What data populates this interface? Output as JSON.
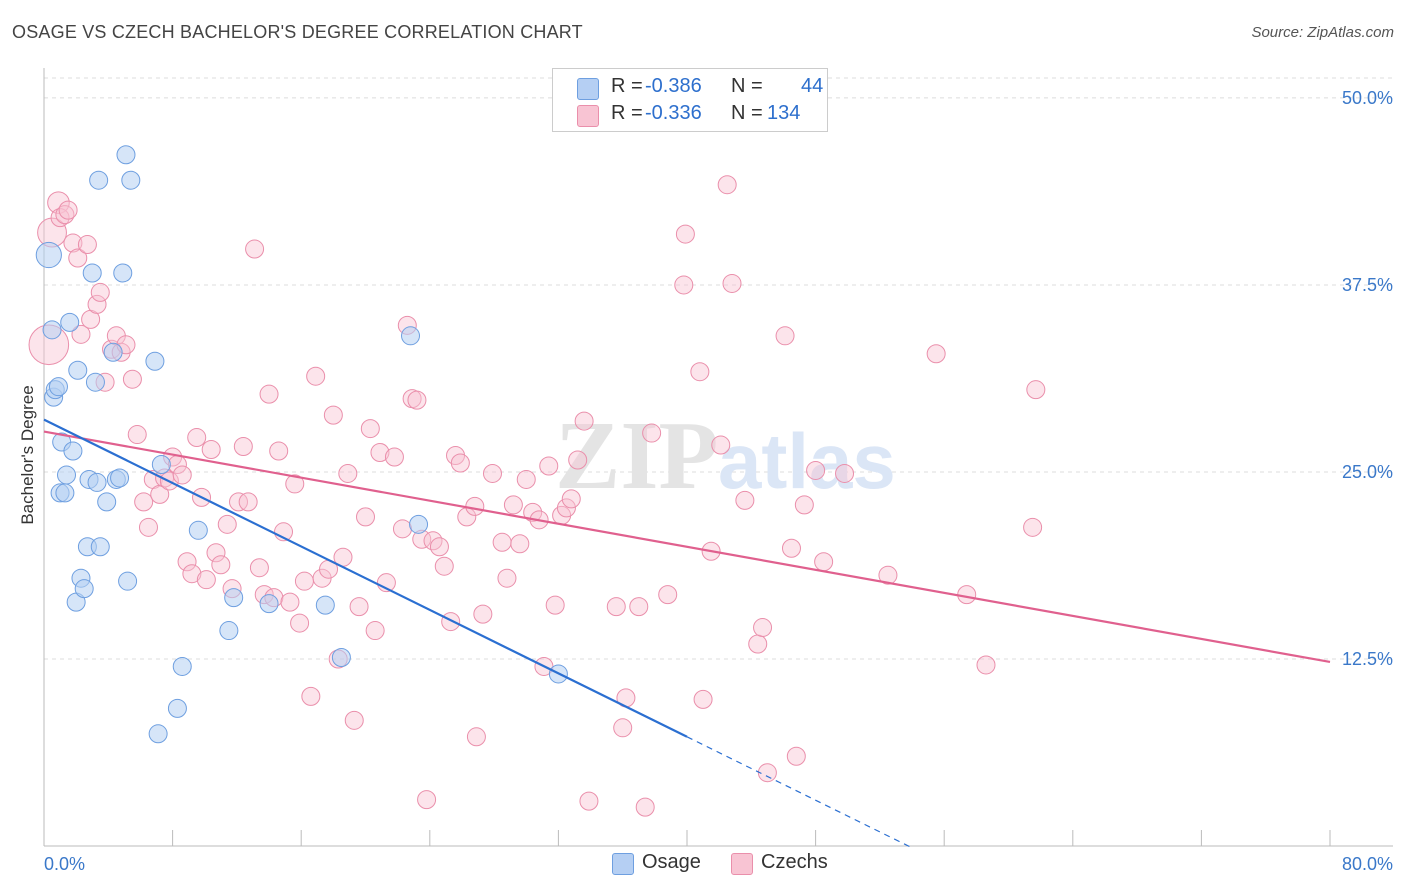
{
  "title": "OSAGE VS CZECH BACHELOR'S DEGREE CORRELATION CHART",
  "source": "Source: ZipAtlas.com",
  "watermark": {
    "zip": "ZIP",
    "atlas": "atlas"
  },
  "legend": {
    "rows": [
      {
        "r_label": "R =",
        "r_value": "-0.386",
        "n_label": "N =",
        "n_value": "44"
      },
      {
        "r_label": "R =",
        "r_value": "-0.336",
        "n_label": "N =",
        "n_value": "134"
      }
    ],
    "bottom": [
      "Osage",
      "Czechs"
    ]
  },
  "colors": {
    "osage_fill": "#b5cff3",
    "osage_stroke": "#6e9fe0",
    "osage_line": "#2b6fd1",
    "czech_fill": "#f8c4d3",
    "czech_stroke": "#ea8fab",
    "czech_line": "#e0608e",
    "grid": "#dcdcdc",
    "axis_text": "#3a78c9"
  },
  "chart_data": {
    "type": "scatter",
    "title": "OSAGE VS CZECH BACHELOR'S DEGREE CORRELATION CHART",
    "xlabel": "",
    "ylabel": "Bachelor's Degree",
    "xlim": [
      0,
      80
    ],
    "ylim": [
      0,
      52
    ],
    "x_tick_labels": [
      "0.0%",
      "80.0%"
    ],
    "y_ticks": [
      12.5,
      25.0,
      37.5,
      50.0
    ],
    "y_tick_labels": [
      "12.5%",
      "25.0%",
      "37.5%",
      "50.0%"
    ],
    "series": [
      {
        "name": "Osage",
        "r": -0.386,
        "n": 44,
        "trend": {
          "x0": 0,
          "y0": 28.5,
          "x1": 40,
          "y1": 7.3,
          "dash_to_x": 54
        },
        "points": [
          [
            0.3,
            39.5,
            1.4
          ],
          [
            0.5,
            34.5,
            1
          ],
          [
            0.6,
            30,
            1
          ],
          [
            0.7,
            30.5,
            1
          ],
          [
            0.9,
            30.7,
            1
          ],
          [
            1.0,
            23.6,
            1
          ],
          [
            1.1,
            27,
            1
          ],
          [
            1.3,
            23.6,
            1
          ],
          [
            1.4,
            24.8,
            1
          ],
          [
            1.6,
            35,
            1
          ],
          [
            1.8,
            26.4,
            1
          ],
          [
            2.0,
            16.3,
            1
          ],
          [
            2.1,
            31.8,
            1
          ],
          [
            2.3,
            17.9,
            1
          ],
          [
            2.5,
            17.2,
            1
          ],
          [
            2.7,
            20,
            1
          ],
          [
            2.8,
            24.5,
            1
          ],
          [
            3.0,
            38.3,
            1
          ],
          [
            3.2,
            31,
            1
          ],
          [
            3.3,
            24.3,
            1
          ],
          [
            3.4,
            44.5,
            1
          ],
          [
            3.5,
            20,
            1
          ],
          [
            3.9,
            23,
            1
          ],
          [
            4.3,
            33,
            1
          ],
          [
            4.5,
            24.5,
            1
          ],
          [
            4.7,
            24.6,
            1
          ],
          [
            4.9,
            38.3,
            1
          ],
          [
            5.1,
            46.2,
            1
          ],
          [
            5.2,
            17.7,
            1
          ],
          [
            5.4,
            44.5,
            1
          ],
          [
            6.9,
            32.4,
            1
          ],
          [
            7.1,
            7.5,
            1
          ],
          [
            7.3,
            25.5,
            1
          ],
          [
            8.3,
            9.2,
            1
          ],
          [
            8.6,
            12,
            1
          ],
          [
            9.6,
            21.1,
            1
          ],
          [
            11.5,
            14.4,
            1
          ],
          [
            11.8,
            16.6,
            1
          ],
          [
            14.0,
            16.2,
            1
          ],
          [
            17.5,
            16.1,
            1
          ],
          [
            18.5,
            12.6,
            1
          ],
          [
            22.8,
            34.1,
            1
          ],
          [
            23.3,
            21.5,
            1
          ],
          [
            32.0,
            11.5,
            1
          ]
        ]
      },
      {
        "name": "Czechs",
        "r": -0.336,
        "n": 134,
        "trend": {
          "x0": 0,
          "y0": 27.7,
          "x1": 80,
          "y1": 12.3
        },
        "points": [
          [
            0.3,
            33.5,
            2.2
          ],
          [
            0.5,
            41,
            1.6
          ],
          [
            0.9,
            43,
            1.2
          ],
          [
            1.0,
            42,
            1
          ],
          [
            1.3,
            42.2,
            1
          ],
          [
            1.5,
            42.5,
            1
          ],
          [
            1.8,
            40.3,
            1
          ],
          [
            2.1,
            39.3,
            1
          ],
          [
            2.3,
            34.2,
            1
          ],
          [
            2.7,
            40.2,
            1
          ],
          [
            2.9,
            35.2,
            1
          ],
          [
            3.3,
            36.2,
            1
          ],
          [
            3.5,
            37,
            1
          ],
          [
            3.8,
            31,
            1
          ],
          [
            4.2,
            33.2,
            1
          ],
          [
            4.5,
            34.1,
            1
          ],
          [
            4.8,
            33,
            1
          ],
          [
            5.1,
            33.5,
            1
          ],
          [
            5.5,
            31.2,
            1
          ],
          [
            5.8,
            27.5,
            1
          ],
          [
            6.2,
            23,
            1
          ],
          [
            6.5,
            21.3,
            1
          ],
          [
            6.8,
            24.5,
            1
          ],
          [
            7.2,
            23.5,
            1
          ],
          [
            7.5,
            24.6,
            1
          ],
          [
            7.8,
            24.4,
            1
          ],
          [
            8.0,
            26,
            1
          ],
          [
            8.3,
            25.5,
            1
          ],
          [
            8.6,
            24.8,
            1
          ],
          [
            8.9,
            19,
            1
          ],
          [
            9.2,
            18.2,
            1
          ],
          [
            9.5,
            27.3,
            1
          ],
          [
            9.8,
            23.3,
            1
          ],
          [
            10.1,
            17.8,
            1
          ],
          [
            10.4,
            26.5,
            1
          ],
          [
            10.7,
            19.6,
            1
          ],
          [
            11.0,
            18.8,
            1
          ],
          [
            11.4,
            21.5,
            1
          ],
          [
            11.7,
            17.2,
            1
          ],
          [
            12.1,
            23,
            1
          ],
          [
            12.4,
            26.7,
            1
          ],
          [
            12.7,
            23,
            1
          ],
          [
            13.1,
            39.9,
            1
          ],
          [
            13.4,
            18.6,
            1
          ],
          [
            13.7,
            16.8,
            1
          ],
          [
            14.0,
            30.2,
            1
          ],
          [
            14.3,
            16.6,
            1
          ],
          [
            14.6,
            26.4,
            1
          ],
          [
            14.9,
            21,
            1
          ],
          [
            15.3,
            16.3,
            1
          ],
          [
            15.6,
            24.2,
            1
          ],
          [
            15.9,
            14.9,
            1
          ],
          [
            16.2,
            17.7,
            1
          ],
          [
            16.6,
            10,
            1
          ],
          [
            16.9,
            31.4,
            1
          ],
          [
            17.3,
            17.9,
            1
          ],
          [
            17.7,
            18.5,
            1
          ],
          [
            18.0,
            28.8,
            1
          ],
          [
            18.3,
            12.5,
            1
          ],
          [
            18.6,
            19.3,
            1
          ],
          [
            18.9,
            24.9,
            1
          ],
          [
            19.3,
            8.4,
            1
          ],
          [
            19.6,
            16,
            1
          ],
          [
            20.0,
            22,
            1
          ],
          [
            20.3,
            27.9,
            1
          ],
          [
            20.6,
            14.4,
            1
          ],
          [
            20.9,
            26.3,
            1
          ],
          [
            21.3,
            17.6,
            1
          ],
          [
            21.8,
            26,
            1
          ],
          [
            22.3,
            21.2,
            1
          ],
          [
            22.6,
            34.8,
            1
          ],
          [
            22.9,
            29.9,
            1
          ],
          [
            23.2,
            29.8,
            1
          ],
          [
            23.5,
            20.5,
            1
          ],
          [
            23.8,
            3.1,
            1
          ],
          [
            24.2,
            20.4,
            1
          ],
          [
            24.6,
            20,
            1
          ],
          [
            24.9,
            18.7,
            1
          ],
          [
            25.3,
            15,
            1
          ],
          [
            25.6,
            26.1,
            1
          ],
          [
            25.9,
            25.6,
            1
          ],
          [
            26.3,
            22,
            1
          ],
          [
            26.9,
            7.3,
            1
          ],
          [
            27.3,
            15.5,
            1
          ],
          [
            27.9,
            24.9,
            1
          ],
          [
            28.5,
            20.3,
            1
          ],
          [
            28.8,
            17.9,
            1
          ],
          [
            29.2,
            22.8,
            1
          ],
          [
            29.6,
            20.2,
            1
          ],
          [
            30.0,
            24.5,
            1
          ],
          [
            30.4,
            22.3,
            1
          ],
          [
            30.8,
            21.8,
            1
          ],
          [
            31.1,
            12,
            1
          ],
          [
            31.4,
            25.4,
            1
          ],
          [
            31.8,
            16.1,
            1
          ],
          [
            32.2,
            22.1,
            1
          ],
          [
            32.5,
            22.6,
            1
          ],
          [
            32.8,
            23.2,
            1
          ],
          [
            33.2,
            25.8,
            1
          ],
          [
            33.6,
            28.4,
            1
          ],
          [
            33.9,
            3,
            1
          ],
          [
            35.6,
            16,
            1
          ],
          [
            36.0,
            7.9,
            1
          ],
          [
            36.2,
            9.9,
            1
          ],
          [
            37.0,
            16,
            1
          ],
          [
            37.4,
            2.6,
            1
          ],
          [
            37.8,
            27.6,
            1
          ],
          [
            38.8,
            16.8,
            1
          ],
          [
            39.8,
            37.5,
            1
          ],
          [
            39.9,
            40.9,
            1
          ],
          [
            40.8,
            31.7,
            1
          ],
          [
            41.0,
            9.8,
            1
          ],
          [
            41.5,
            19.7,
            1
          ],
          [
            42.1,
            26.8,
            1
          ],
          [
            42.5,
            44.2,
            1
          ],
          [
            42.8,
            37.6,
            1
          ],
          [
            43.6,
            23.1,
            1
          ],
          [
            44.4,
            13.5,
            1
          ],
          [
            44.7,
            14.6,
            1
          ],
          [
            45.0,
            4.9,
            1
          ],
          [
            46.1,
            34.1,
            1
          ],
          [
            46.5,
            19.9,
            1
          ],
          [
            46.8,
            6,
            1
          ],
          [
            47.3,
            22.8,
            1
          ],
          [
            48.0,
            25.1,
            1
          ],
          [
            48.5,
            19,
            1
          ],
          [
            52.5,
            18.1,
            1
          ],
          [
            55.5,
            32.9,
            1
          ],
          [
            57.4,
            16.8,
            1
          ],
          [
            58.6,
            12.1,
            1
          ],
          [
            61.5,
            21.3,
            1
          ],
          [
            61.7,
            30.5,
            1
          ],
          [
            49.8,
            24.9,
            1
          ],
          [
            26.8,
            22.7,
            1
          ]
        ]
      }
    ]
  }
}
